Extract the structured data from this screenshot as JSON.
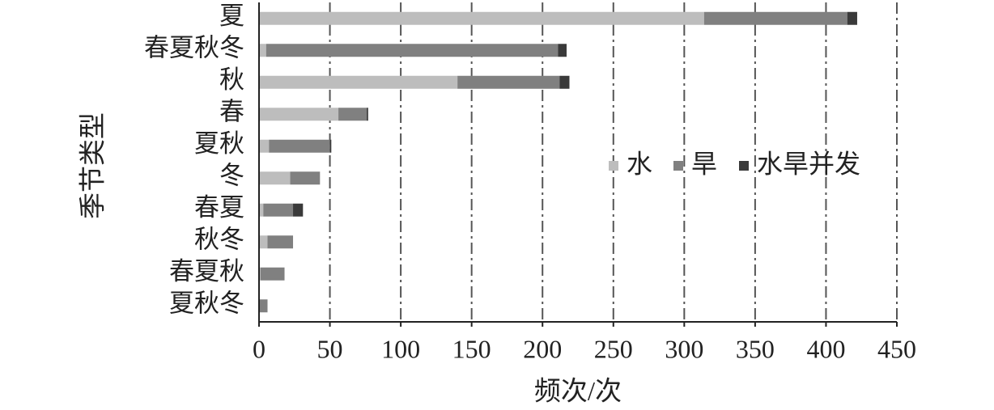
{
  "chart_data": {
    "type": "stacked-bar",
    "orientation": "horizontal",
    "x_label": "频次/次",
    "y_label": "季节类型",
    "categories": [
      "夏",
      "春夏秋冬",
      "秋",
      "春",
      "夏秋",
      "冬",
      "春夏",
      "秋冬",
      "春夏秋",
      "夏秋冬"
    ],
    "series": [
      {
        "name": "水",
        "color": "#bdbdbd",
        "values": [
          314,
          5,
          140,
          56,
          7,
          22,
          3,
          6,
          1,
          0
        ]
      },
      {
        "name": "旱",
        "color": "#808080",
        "values": [
          101,
          206,
          72,
          20,
          43,
          21,
          21,
          18,
          17,
          6
        ]
      },
      {
        "name": "水旱并发",
        "color": "#3a3a3a",
        "values": [
          7,
          6,
          7,
          1,
          1,
          0,
          7,
          0,
          0,
          0
        ]
      }
    ],
    "xlim": [
      0,
      450
    ],
    "xticks": [
      0,
      50,
      100,
      150,
      200,
      250,
      300,
      350,
      400,
      450
    ],
    "grid": true,
    "legend": "right"
  }
}
